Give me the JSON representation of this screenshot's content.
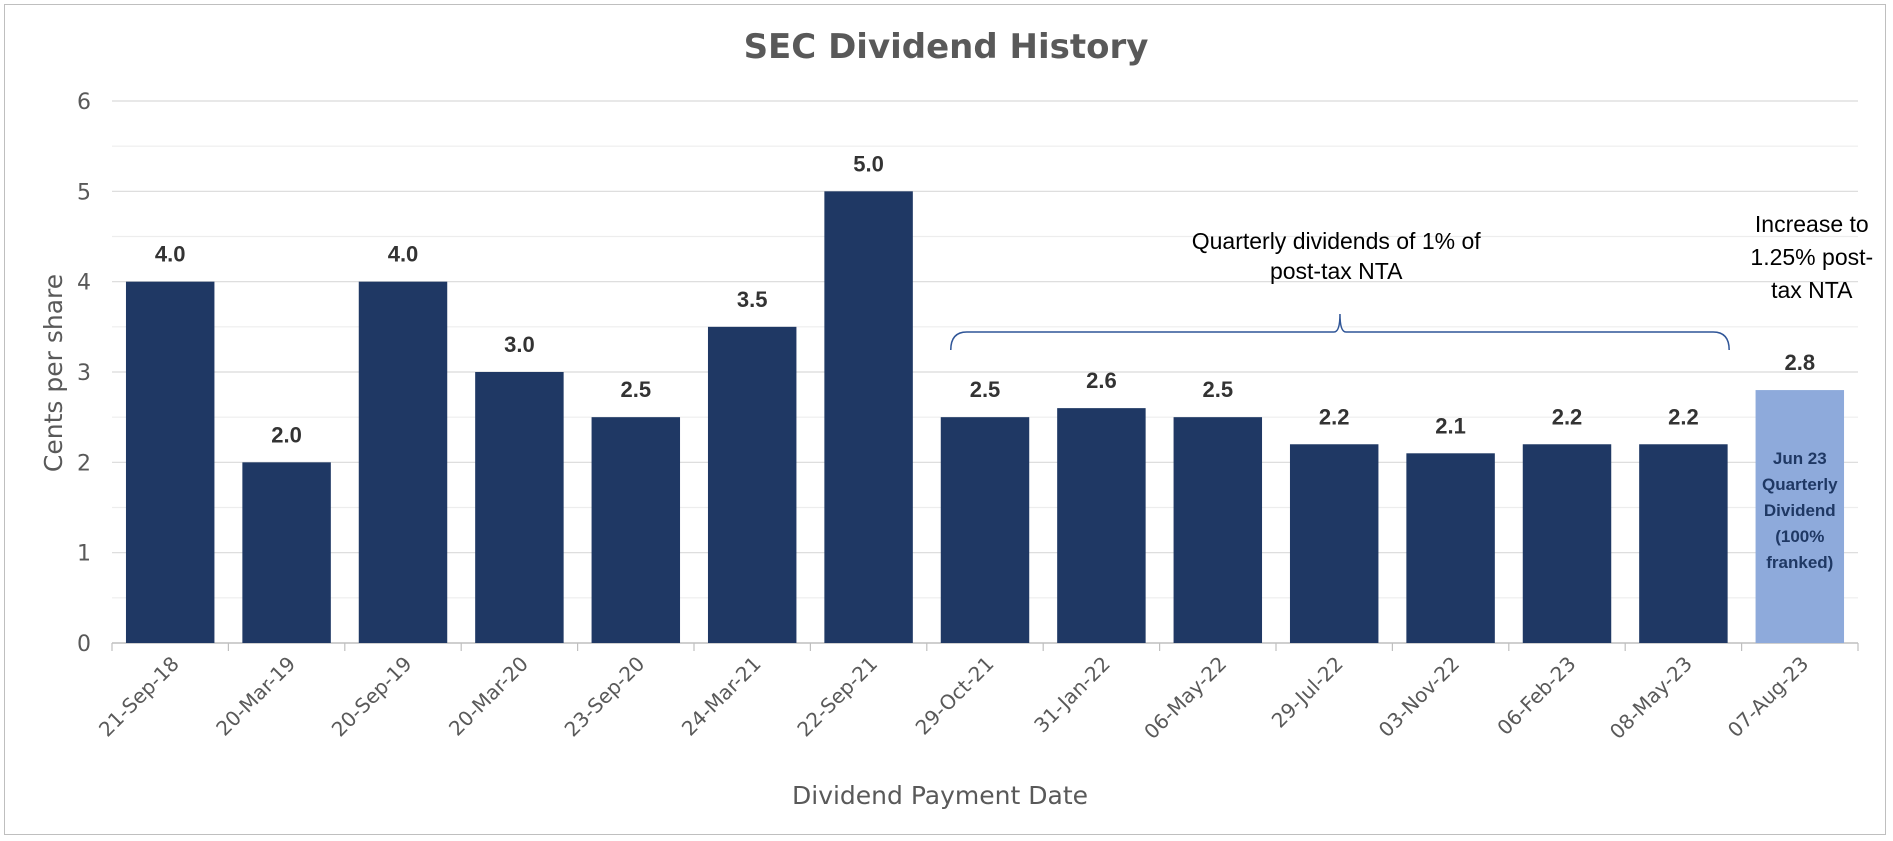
{
  "chart_data": {
    "type": "bar",
    "title": "SEC Dividend History",
    "xlabel": "Dividend Payment Date",
    "ylabel": "Cents per share",
    "ylim": [
      0,
      6
    ],
    "yticks": [
      "0",
      "1",
      "2",
      "3",
      "4",
      "5",
      "6"
    ],
    "grid": true,
    "categories": [
      "21-Sep-18",
      "20-Mar-19",
      "20-Sep-19",
      "20-Mar-20",
      "23-Sep-20",
      "24-Mar-21",
      "22-Sep-21",
      "29-Oct-21",
      "31-Jan-22",
      "06-May-22",
      "29-Jul-22",
      "03-Nov-22",
      "06-Feb-23",
      "08-May-23",
      "07-Aug-23"
    ],
    "values": [
      4.0,
      2.0,
      4.0,
      3.0,
      2.5,
      3.5,
      5.0,
      2.5,
      2.6,
      2.5,
      2.2,
      2.1,
      2.2,
      2.2,
      2.8
    ],
    "data_labels": [
      "4.0",
      "2.0",
      "4.0",
      "3.0",
      "2.5",
      "3.5",
      "5.0",
      "2.5",
      "2.6",
      "2.5",
      "2.2",
      "2.1",
      "2.2",
      "2.2",
      "2.8"
    ],
    "colors": {
      "bar": "#1f3864",
      "highlight_bar": "#8eaadb",
      "highlight_index": 14,
      "grid": "#d9d9d9",
      "text": "#595959"
    },
    "annotations": {
      "quarterly": [
        "Quarterly dividends of 1% of",
        "post-tax NTA"
      ],
      "increase": [
        "Increase to",
        "1.25% post-",
        "tax NTA"
      ],
      "highlight_bar_text": [
        "Jun 23",
        "Quarterly",
        "Dividend",
        "(100%",
        "franked)"
      ]
    }
  }
}
